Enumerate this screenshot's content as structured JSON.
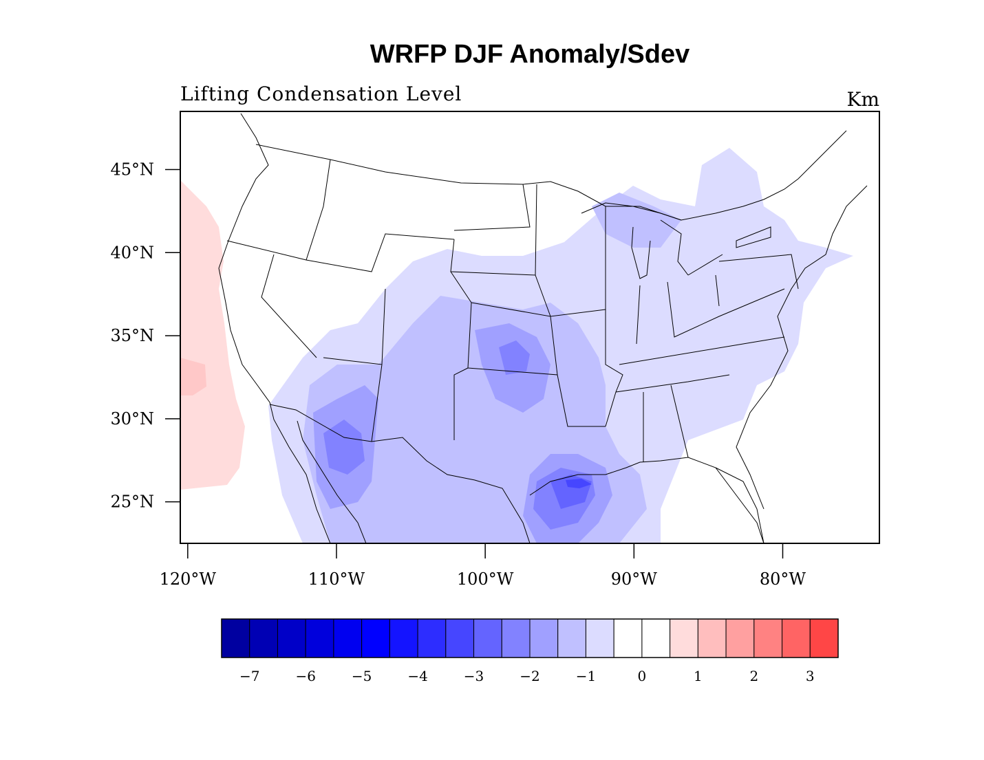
{
  "title": "WRFP DJF Anomaly/Sdev",
  "subtitle_left": "Lifting Condensation Level",
  "subtitle_right": "Km",
  "map": {
    "lon_range": [
      -120.5,
      -73.5
    ],
    "lat_range": [
      22.5,
      48.5
    ],
    "lat_ticks": [
      {
        "value": 45,
        "label": "45°N"
      },
      {
        "value": 40,
        "label": "40°N"
      },
      {
        "value": 35,
        "label": "35°N"
      },
      {
        "value": 30,
        "label": "30°N"
      },
      {
        "value": 25,
        "label": "25°N"
      }
    ],
    "lon_ticks": [
      {
        "value": -120,
        "label": "120°W"
      },
      {
        "value": -110,
        "label": "110°W"
      },
      {
        "value": -100,
        "label": "100°W"
      },
      {
        "value": -90,
        "label": "90°W"
      },
      {
        "value": -80,
        "label": "80°W"
      }
    ]
  },
  "colorbar": {
    "colors": [
      "#0000a0",
      "#0000b4",
      "#0000c8",
      "#0000dc",
      "#0000f0",
      "#0000ff",
      "#1414ff",
      "#2d2dff",
      "#4646ff",
      "#6464ff",
      "#8282ff",
      "#a0a0ff",
      "#c0c0ff",
      "#dcdcff",
      "#ffffff",
      "#ffffff",
      "#ffdcdc",
      "#ffbebe",
      "#ffa0a0",
      "#ff8282",
      "#ff6464",
      "#ff4646"
    ],
    "labels": [
      "−7",
      "−6",
      "−5",
      "−4",
      "−3",
      "−2",
      "−1",
      "0",
      "1",
      "2",
      "3"
    ]
  },
  "fill_colors": {
    "weak_neg": "#dcdcff",
    "mid_neg": "#c0c0ff",
    "strong_neg": "#a0a0ff",
    "stronger_neg": "#8282ff",
    "peak_neg": "#6464ff",
    "core_neg": "#4646ff",
    "weak_pos": "#ffdcdc",
    "mid_pos": "#ffc8c8"
  }
}
